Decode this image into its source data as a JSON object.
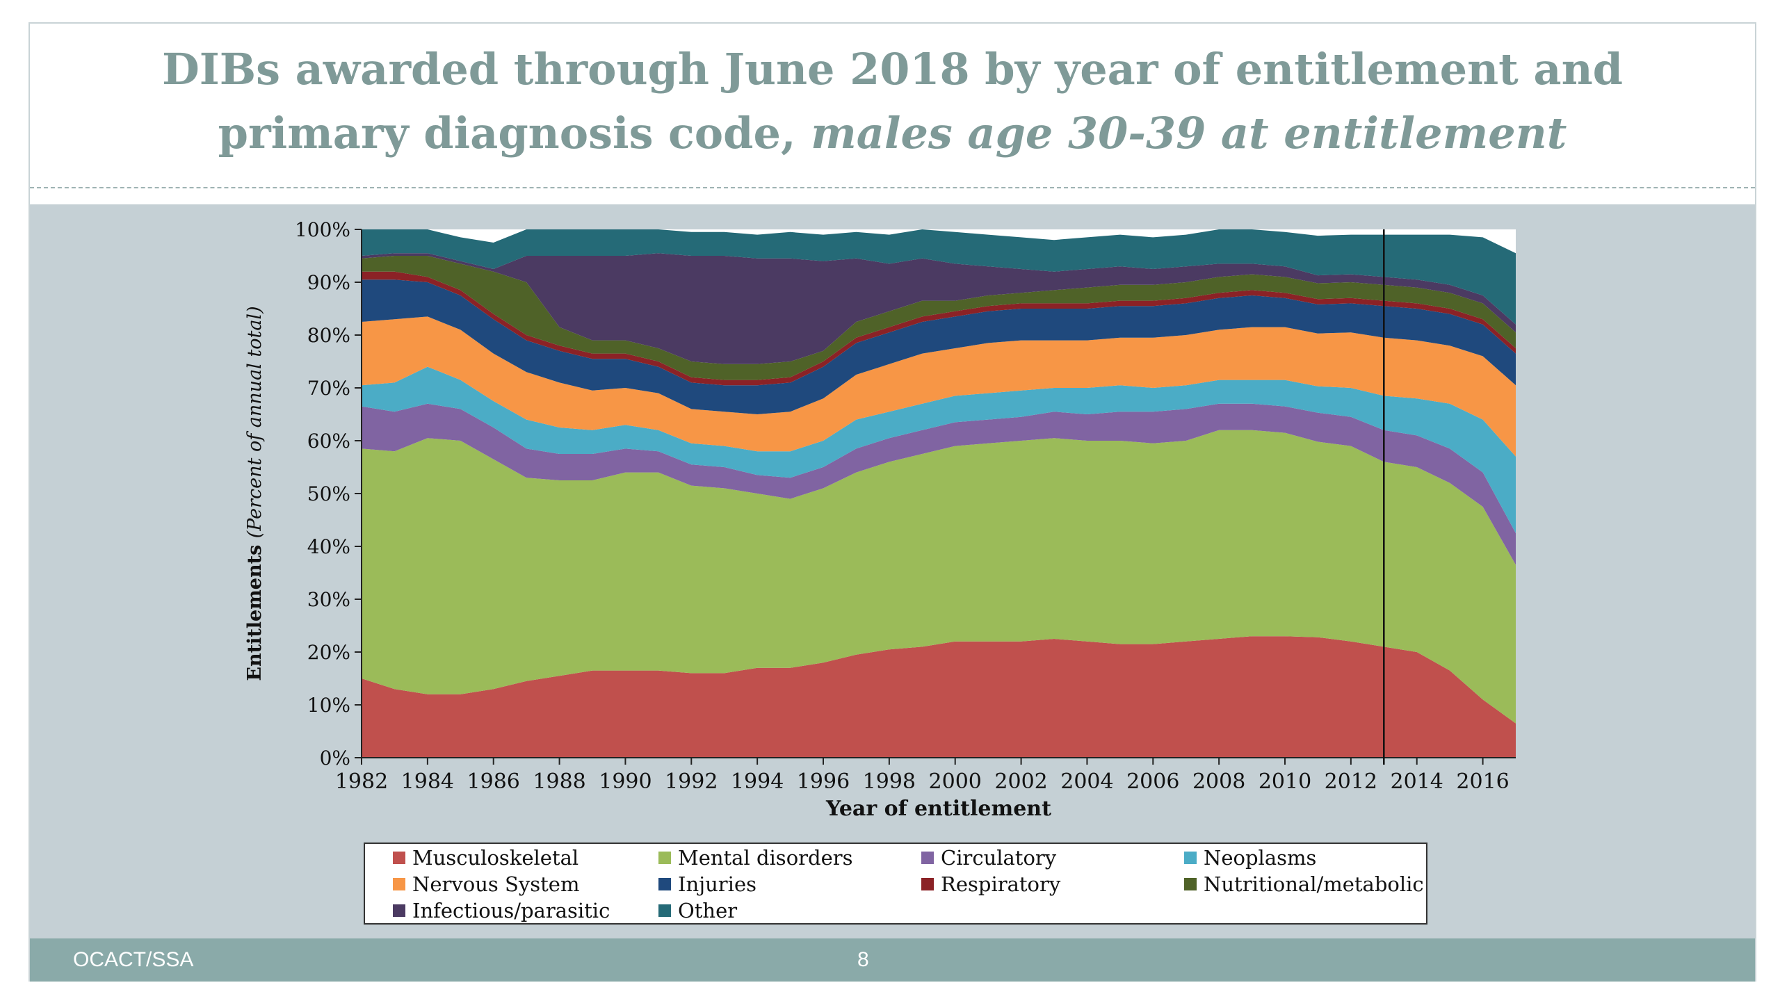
{
  "slide": {
    "title_line1": "DIBs awarded through June 2018 by year of entitlement and",
    "title_line2_plain": "primary diagnosis code,",
    "title_line2_emph": "males age 30-39 at entitlement",
    "footer_left": "OCACT/SSA",
    "page_number": "8"
  },
  "colors": {
    "title": "#7f9a98",
    "body_band": "#c5d0d5",
    "footer_band": "#8aaaa9"
  },
  "chart_data": {
    "type": "area",
    "stacked": true,
    "percent": true,
    "xlabel": "Year of entitlement",
    "ylabel_bold": "Entitlements",
    "ylabel_italic": "(Percent of annual total)",
    "ylim": [
      0,
      100
    ],
    "xlim": [
      1982,
      2017
    ],
    "yticks": [
      "0%",
      "10%",
      "20%",
      "30%",
      "40%",
      "50%",
      "60%",
      "70%",
      "80%",
      "90%",
      "100%"
    ],
    "xticks": [
      "1982",
      "1984",
      "1986",
      "1988",
      "1990",
      "1992",
      "1994",
      "1996",
      "1998",
      "2000",
      "2002",
      "2004",
      "2006",
      "2008",
      "2010",
      "2012",
      "2014",
      "2016"
    ],
    "vertical_marker_year": 2013,
    "legend_position": "bottom",
    "x": [
      1982,
      1983,
      1984,
      1985,
      1986,
      1987,
      1988,
      1989,
      1990,
      1991,
      1992,
      1993,
      1994,
      1995,
      1996,
      1997,
      1998,
      1999,
      2000,
      2001,
      2002,
      2003,
      2004,
      2005,
      2006,
      2007,
      2008,
      2009,
      2010,
      2011,
      2012,
      2013,
      2014,
      2015,
      2016,
      2017
    ],
    "series": [
      {
        "name": "Musculoskeletal",
        "color": "#c0504d",
        "values": [
          15,
          13,
          12,
          12,
          13,
          14.5,
          15.5,
          16.5,
          16.5,
          16.5,
          16,
          16,
          17,
          17,
          18,
          19.5,
          20.5,
          21,
          22,
          22,
          22,
          22.5,
          22,
          21.5,
          21.5,
          22,
          22.5,
          23,
          23,
          22.8,
          22,
          21,
          20,
          16.5,
          11,
          6.5
        ]
      },
      {
        "name": "Mental disorders",
        "color": "#9bbb59",
        "values": [
          43.5,
          45,
          48.5,
          48,
          43.5,
          38.5,
          37,
          36,
          37.5,
          37.5,
          35.5,
          35,
          33,
          32,
          33,
          34.5,
          35.5,
          36.5,
          37,
          37.5,
          38,
          38,
          38,
          38.5,
          38,
          38,
          39.5,
          39,
          38.5,
          37,
          37,
          35,
          35,
          35.5,
          36.5,
          30
        ]
      },
      {
        "name": "Circulatory",
        "color": "#8064a2",
        "values": [
          8,
          7.5,
          6.5,
          6,
          6,
          5.5,
          5,
          5,
          4.5,
          4,
          4,
          4,
          3.5,
          4,
          4,
          4.5,
          4.5,
          4.5,
          4.5,
          4.5,
          4.5,
          5,
          5,
          5.5,
          6,
          6,
          5,
          5,
          5,
          5.5,
          5.5,
          6,
          6,
          6.5,
          6.5,
          6
        ]
      },
      {
        "name": "Neoplasms",
        "color": "#4bacc6",
        "values": [
          4,
          5.5,
          7,
          5.5,
          5,
          5.5,
          5,
          4.5,
          4.5,
          4,
          4,
          4,
          4.5,
          5,
          5,
          5.5,
          5,
          5,
          5,
          5,
          5,
          4.5,
          5,
          5,
          4.5,
          4.5,
          4.5,
          4.5,
          5,
          5,
          5.5,
          6.5,
          7,
          8.5,
          10,
          14.5
        ]
      },
      {
        "name": "Nervous System",
        "color": "#f79646",
        "values": [
          12,
          12,
          9.5,
          9.5,
          9,
          9,
          8.5,
          7.5,
          7,
          7,
          6.5,
          6.5,
          7,
          7.5,
          8,
          8.5,
          9,
          9.5,
          9,
          9.5,
          9.5,
          9,
          9,
          9,
          9.5,
          9.5,
          9.5,
          10,
          10,
          10,
          10.5,
          11,
          11,
          11,
          12,
          13.5
        ]
      },
      {
        "name": "Injuries",
        "color": "#1f497d",
        "values": [
          8,
          7.5,
          6.5,
          6.5,
          6.5,
          6,
          6,
          6,
          5.5,
          5,
          5,
          5,
          5.5,
          5.5,
          6,
          6,
          6,
          6,
          6,
          6,
          6,
          6,
          6,
          6,
          6,
          6,
          6,
          6,
          5.5,
          5.5,
          5.5,
          6,
          6,
          6,
          6,
          6
        ]
      },
      {
        "name": "Respiratory",
        "color": "#8b2226",
        "values": [
          1.5,
          1.5,
          1,
          1,
          1,
          1,
          1,
          1,
          1,
          1,
          1,
          1,
          1,
          1,
          1,
          1,
          1,
          1,
          1,
          1,
          1,
          1,
          1,
          1,
          1,
          1,
          1,
          1,
          1,
          1,
          1,
          1,
          1,
          1,
          1,
          1
        ]
      },
      {
        "name": "Nutritional/metabolic",
        "color": "#4f6228",
        "values": [
          2.5,
          3,
          4,
          5,
          8,
          10,
          3.5,
          2.5,
          2.5,
          2.5,
          3,
          3,
          3,
          3,
          2,
          3,
          3,
          3,
          2,
          2,
          2,
          2.5,
          3,
          3,
          3,
          3,
          3,
          3,
          3,
          3,
          3,
          3,
          3,
          3,
          3,
          3
        ]
      },
      {
        "name": "Infectious/parasitic",
        "color": "#4b3a62",
        "values": [
          0.5,
          0.5,
          0.5,
          0.5,
          0.5,
          5,
          13.5,
          16,
          16,
          18,
          20,
          20.5,
          20,
          19.5,
          17,
          12,
          9,
          8,
          7,
          5.5,
          4.5,
          3.5,
          3.5,
          3.5,
          3,
          3,
          2.5,
          2,
          2,
          1.5,
          1.5,
          1.5,
          1.5,
          1.5,
          1.5,
          1.5
        ]
      },
      {
        "name": "Other",
        "color": "#256a77",
        "values": [
          5,
          4.5,
          4.5,
          4.5,
          5,
          5,
          5,
          5,
          5,
          4.5,
          4.5,
          4.5,
          4.5,
          5,
          5,
          5,
          5.5,
          5.5,
          6,
          6,
          6,
          6,
          6,
          6,
          6,
          6,
          6.5,
          6.5,
          6.5,
          7.5,
          7.5,
          8,
          8.5,
          9.5,
          11,
          13.5
        ]
      }
    ]
  }
}
